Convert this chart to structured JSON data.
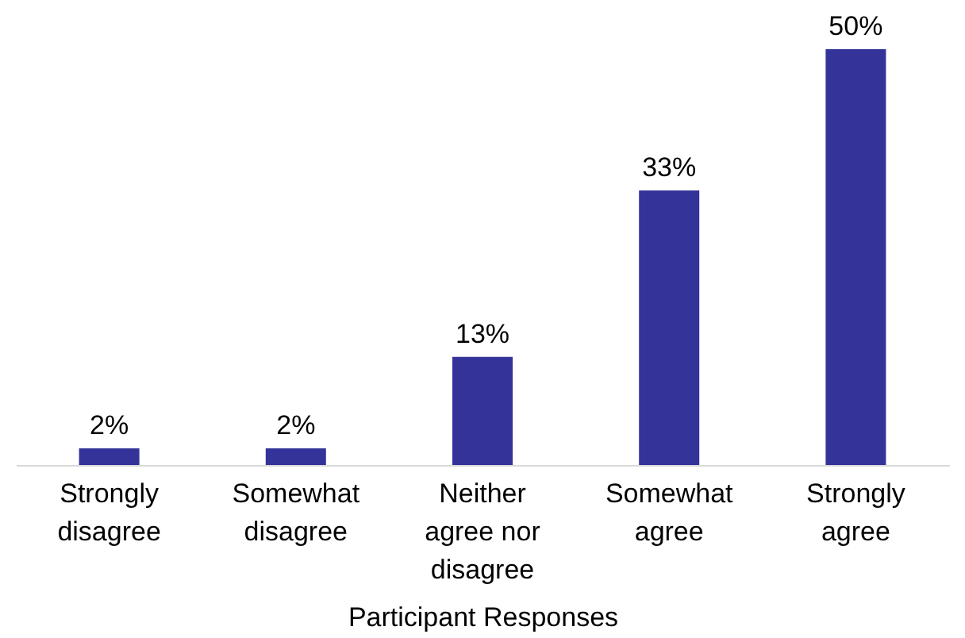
{
  "chart_data": {
    "type": "bar",
    "xlabel": "Participant Responses",
    "categories": [
      "Strongly disagree",
      "Somewhat disagree",
      "Neither agree nor disagree",
      "Somewhat agree",
      "Strongly agree"
    ],
    "values": [
      2,
      2,
      13,
      33,
      50
    ],
    "value_labels": [
      "2%",
      "2%",
      "13%",
      "33%",
      "50%"
    ],
    "color": "#333399",
    "grid": false
  }
}
